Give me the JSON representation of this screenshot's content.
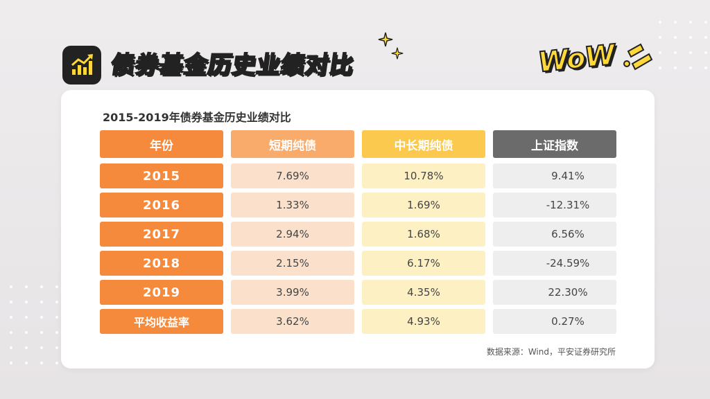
{
  "header": {
    "title": "债券基金历史业绩对比",
    "wow_text": "WoW"
  },
  "card": {
    "title": "2015-2019年债券基金历史业绩对比",
    "source": "数据来源：Wind，平安证券研究所"
  },
  "table": {
    "columns": [
      "年份",
      "短期纯债",
      "中长期纯债",
      "上证指数"
    ],
    "rows": [
      {
        "year": "2015",
        "short": "7.69%",
        "mid": "10.78%",
        "index": "9.41%"
      },
      {
        "year": "2016",
        "short": "1.33%",
        "mid": "1.69%",
        "index": "-12.31%"
      },
      {
        "year": "2017",
        "short": "2.94%",
        "mid": "1.68%",
        "index": "6.56%"
      },
      {
        "year": "2018",
        "short": "2.15%",
        "mid": "6.17%",
        "index": "-24.59%"
      },
      {
        "year": "2019",
        "short": "3.99%",
        "mid": "4.35%",
        "index": "22.30%"
      },
      {
        "year": "平均收益率",
        "short": "3.62%",
        "mid": "4.93%",
        "index": "0.27%"
      }
    ]
  },
  "colors": {
    "year_col": "#f58a3c",
    "short_header": "#f9ab6b",
    "mid_header": "#fbc94d",
    "index_header": "#6b6b6b",
    "title_yellow": "#ffd83a"
  },
  "icons": [
    "chart-trend-icon",
    "sparkle-icon",
    "wow-sticker"
  ]
}
